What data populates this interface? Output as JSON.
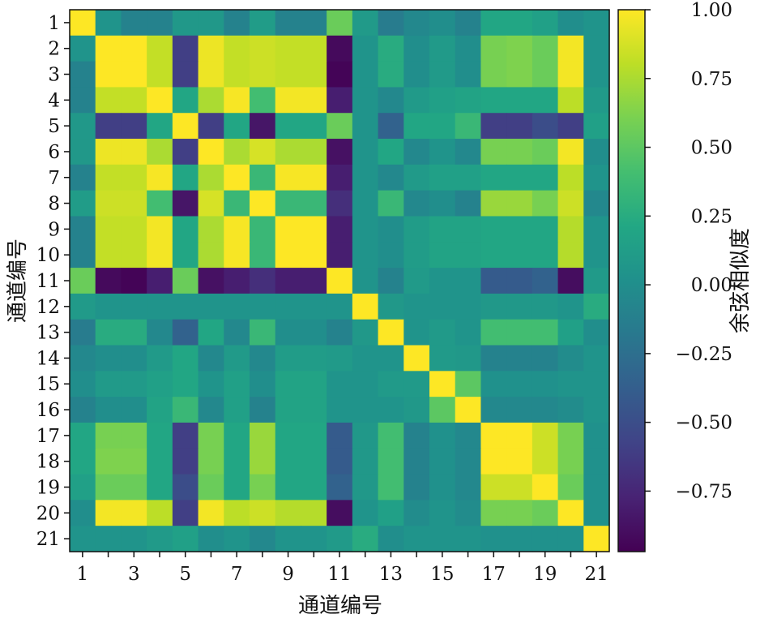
{
  "chart_data": {
    "type": "heatmap",
    "title": "",
    "xlabel": "通道编号",
    "ylabel": "通道编号",
    "colorbar_label": "余弦相似度",
    "colormap": "viridis",
    "vlim": [
      -0.97,
      1.0
    ],
    "categories": [
      "1",
      "2",
      "3",
      "4",
      "5",
      "6",
      "7",
      "8",
      "9",
      "10",
      "11",
      "12",
      "13",
      "14",
      "15",
      "16",
      "17",
      "18",
      "19",
      "20",
      "21"
    ],
    "x_tick_labels": [
      "1",
      "3",
      "5",
      "7",
      "9",
      "11",
      "13",
      "15",
      "17",
      "19",
      "21"
    ],
    "y_tick_labels": [
      "1",
      "2",
      "3",
      "4",
      "5",
      "6",
      "7",
      "8",
      "9",
      "10",
      "11",
      "12",
      "13",
      "14",
      "15",
      "16",
      "17",
      "18",
      "19",
      "20",
      "21"
    ],
    "colorbar_ticks": [
      1.0,
      0.75,
      0.5,
      0.25,
      0.0,
      -0.25,
      -0.5,
      -0.75
    ],
    "colorbar_tick_labels": [
      "1.00",
      "0.75",
      "0.50",
      "0.25",
      "0.00",
      "−0.25",
      "−0.50",
      "−0.75"
    ],
    "matrix": [
      [
        1,
        0.05,
        -0.1,
        -0.1,
        0.08,
        0.08,
        -0.1,
        0.12,
        -0.1,
        -0.1,
        0.55,
        0.1,
        -0.15,
        -0.05,
        0,
        -0.1,
        0.2,
        0.2,
        0.15,
        0,
        0.05
      ],
      [
        0.05,
        1,
        1,
        0.82,
        -0.6,
        0.95,
        0.82,
        0.85,
        0.82,
        0.82,
        -0.92,
        0.05,
        0.25,
        0,
        0.1,
        0,
        0.6,
        0.62,
        0.55,
        0.97,
        0.05
      ],
      [
        -0.1,
        1,
        1,
        0.82,
        -0.6,
        0.95,
        0.82,
        0.85,
        0.82,
        0.82,
        -0.95,
        0.05,
        0.25,
        0,
        0.1,
        0,
        0.6,
        0.62,
        0.55,
        0.97,
        0.05
      ],
      [
        -0.1,
        0.82,
        0.82,
        1,
        0.2,
        0.75,
        0.98,
        0.4,
        0.97,
        0.97,
        -0.8,
        0.05,
        -0.05,
        0.1,
        0.15,
        0.18,
        0.2,
        0.2,
        0.2,
        0.8,
        0.1
      ],
      [
        0.08,
        -0.6,
        -0.6,
        0.2,
        1,
        -0.6,
        0.2,
        -0.85,
        0.2,
        0.2,
        0.55,
        0.05,
        -0.35,
        0.2,
        0.2,
        0.35,
        -0.6,
        -0.6,
        -0.5,
        -0.6,
        0.15
      ],
      [
        0.08,
        0.95,
        0.95,
        0.75,
        -0.6,
        1,
        0.75,
        0.88,
        0.75,
        0.75,
        -0.88,
        0.05,
        0.2,
        -0.05,
        0.05,
        -0.05,
        0.6,
        0.6,
        0.55,
        0.97,
        0
      ],
      [
        -0.1,
        0.82,
        0.82,
        0.98,
        0.2,
        0.75,
        1,
        0.35,
        0.98,
        0.98,
        -0.8,
        0.05,
        -0.05,
        0.1,
        0.15,
        0.15,
        0.2,
        0.2,
        0.2,
        0.8,
        0.05
      ],
      [
        0.12,
        0.85,
        0.85,
        0.4,
        -0.85,
        0.88,
        0.35,
        1,
        0.35,
        0.35,
        -0.7,
        0.05,
        0.35,
        -0.05,
        0,
        -0.1,
        0.7,
        0.7,
        0.6,
        0.85,
        -0.05
      ],
      [
        -0.1,
        0.82,
        0.82,
        0.97,
        0.2,
        0.75,
        0.98,
        0.35,
        1,
        1,
        -0.8,
        0.05,
        0,
        0.12,
        0.18,
        0.18,
        0.2,
        0.2,
        0.2,
        0.78,
        0.05
      ],
      [
        -0.1,
        0.82,
        0.82,
        0.97,
        0.2,
        0.75,
        0.98,
        0.35,
        1,
        1,
        -0.8,
        0.05,
        0,
        0.12,
        0.18,
        0.18,
        0.2,
        0.2,
        0.2,
        0.78,
        0.05
      ],
      [
        0.55,
        -0.92,
        -0.95,
        -0.8,
        0.55,
        -0.88,
        -0.8,
        -0.7,
        -0.8,
        -0.8,
        1,
        0.05,
        -0.1,
        0.1,
        0.05,
        0.05,
        -0.4,
        -0.4,
        -0.35,
        -0.9,
        0.1
      ],
      [
        0.1,
        0.05,
        0.05,
        0.05,
        0.05,
        0.05,
        0.05,
        0.05,
        0.05,
        0.05,
        0.05,
        1,
        0.08,
        0.05,
        0.05,
        0.05,
        0.08,
        0.08,
        0.08,
        0.05,
        0.25
      ],
      [
        -0.15,
        0.25,
        0.25,
        -0.05,
        -0.35,
        0.2,
        -0.05,
        0.35,
        0,
        0,
        -0.1,
        0.08,
        1,
        0.05,
        0.1,
        0.05,
        0.4,
        0.4,
        0.4,
        0.15,
        0
      ],
      [
        -0.05,
        0,
        0,
        0.1,
        0.2,
        -0.05,
        0.1,
        -0.05,
        0.12,
        0.12,
        0.1,
        0.05,
        0.05,
        1,
        0.1,
        0.08,
        -0.1,
        -0.1,
        -0.1,
        -0.02,
        0.05
      ],
      [
        0,
        0.1,
        0.1,
        0.15,
        0.2,
        0.05,
        0.15,
        0,
        0.18,
        0.18,
        0.05,
        0.05,
        0.1,
        0.1,
        1,
        0.5,
        0.02,
        0.02,
        0.02,
        0.05,
        0.05
      ],
      [
        -0.1,
        0,
        0,
        0.18,
        0.35,
        -0.05,
        0.15,
        -0.1,
        0.18,
        0.18,
        0.05,
        0.05,
        0.05,
        0.08,
        0.5,
        1,
        -0.05,
        -0.05,
        -0.05,
        -0.02,
        0.05
      ],
      [
        0.2,
        0.6,
        0.6,
        0.2,
        -0.6,
        0.6,
        0.2,
        0.7,
        0.2,
        0.2,
        -0.4,
        0.08,
        0.4,
        -0.1,
        0.02,
        -0.05,
        1,
        1,
        0.85,
        0.6,
        0.02
      ],
      [
        0.2,
        0.62,
        0.62,
        0.2,
        -0.6,
        0.6,
        0.2,
        0.7,
        0.2,
        0.2,
        -0.4,
        0.08,
        0.4,
        -0.1,
        0.02,
        -0.05,
        1,
        1,
        0.85,
        0.6,
        0.02
      ],
      [
        0.15,
        0.55,
        0.55,
        0.2,
        -0.5,
        0.55,
        0.2,
        0.6,
        0.2,
        0.2,
        -0.35,
        0.08,
        0.4,
        -0.1,
        0.02,
        -0.05,
        0.85,
        0.85,
        1,
        0.55,
        0.02
      ],
      [
        0,
        0.97,
        0.97,
        0.8,
        -0.6,
        0.97,
        0.8,
        0.85,
        0.78,
        0.78,
        -0.9,
        0.05,
        0.15,
        -0.02,
        0.05,
        -0.02,
        0.6,
        0.6,
        0.55,
        1,
        0.02
      ],
      [
        0.05,
        0.05,
        0.05,
        0.1,
        0.15,
        0,
        0.05,
        -0.05,
        0.05,
        0.05,
        0.1,
        0.25,
        0,
        0.05,
        0.05,
        0.05,
        0.02,
        0.02,
        0.02,
        0.02,
        1
      ]
    ]
  }
}
